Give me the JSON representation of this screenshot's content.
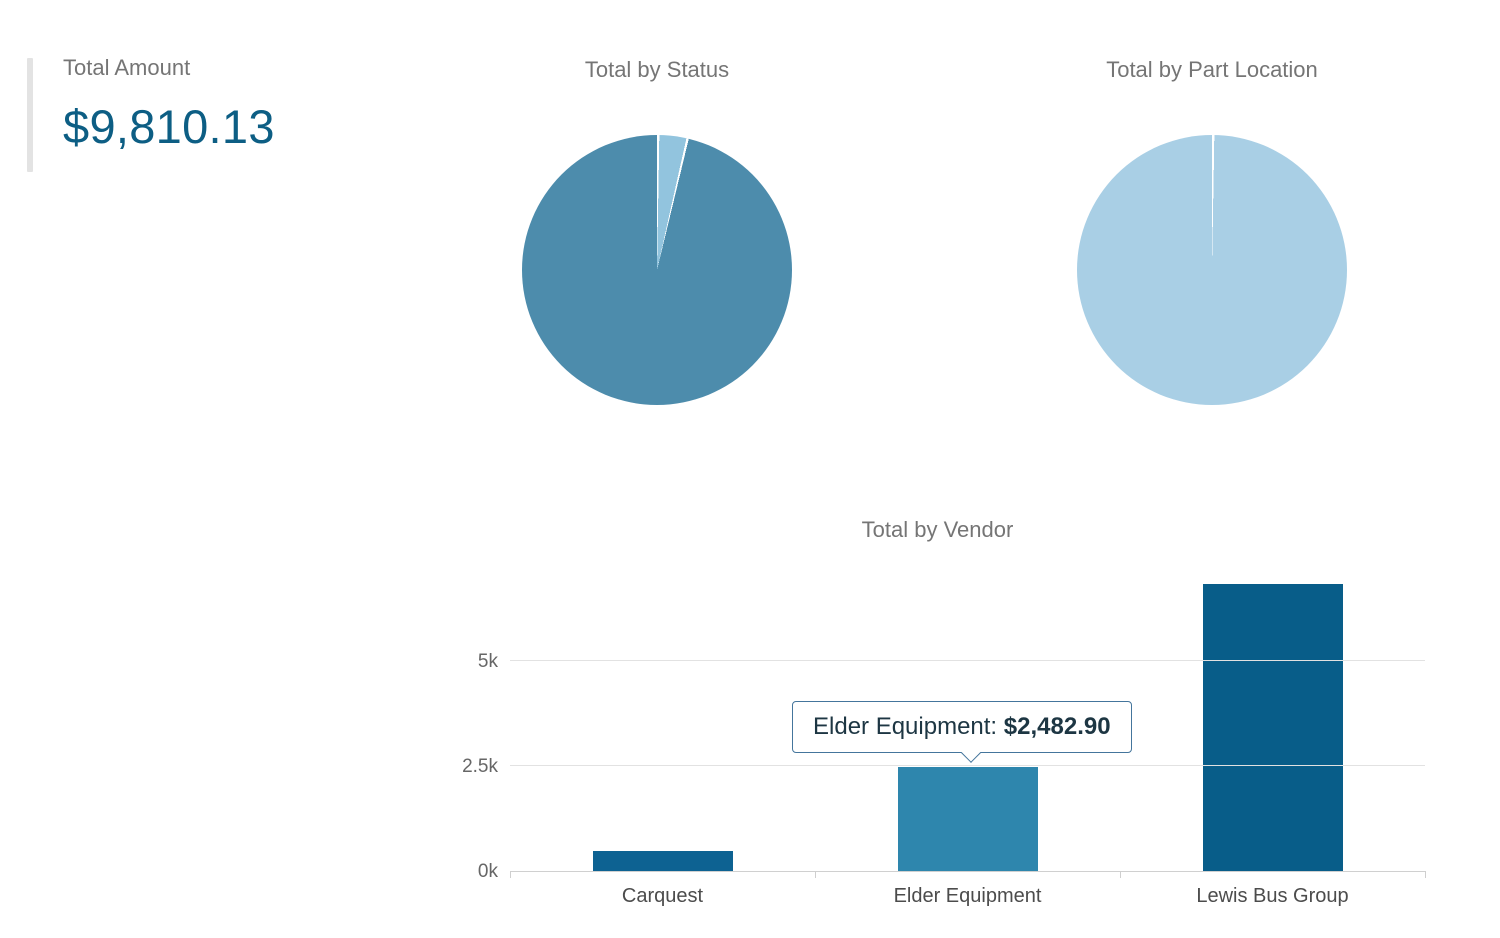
{
  "summary": {
    "label": "Total Amount",
    "value": "$9,810.13",
    "value_color": "#0d5e84"
  },
  "chart_data": [
    {
      "type": "pie",
      "title": "Total by Status",
      "legend": "none",
      "segments": [
        {
          "value": 3.5,
          "color": "#92c4de"
        },
        {
          "value": 96.5,
          "color": "#4d8cac"
        }
      ]
    },
    {
      "type": "pie",
      "title": "Total by Part Location",
      "legend": "none",
      "segments": [
        {
          "value": 100,
          "color": "#a9cfe5"
        }
      ]
    },
    {
      "type": "bar",
      "title": "Total by Vendor",
      "categories": [
        "Carquest",
        "Elder Equipment",
        "Lewis Bus Group"
      ],
      "values": [
        480,
        2482.9,
        6847.23
      ],
      "bar_colors": [
        "#0d6292",
        "#2e86ad",
        "#085d89"
      ],
      "yticks": [
        {
          "label": "0k",
          "value": 0
        },
        {
          "label": "2.5k",
          "value": 2500
        },
        {
          "label": "5k",
          "value": 5000
        }
      ],
      "ylim": [
        0,
        7150
      ],
      "grid": "horizontal",
      "tooltip": {
        "category": "Elder Equipment",
        "label": "Elder Equipment: ",
        "value": "$2,482.90"
      }
    }
  ]
}
